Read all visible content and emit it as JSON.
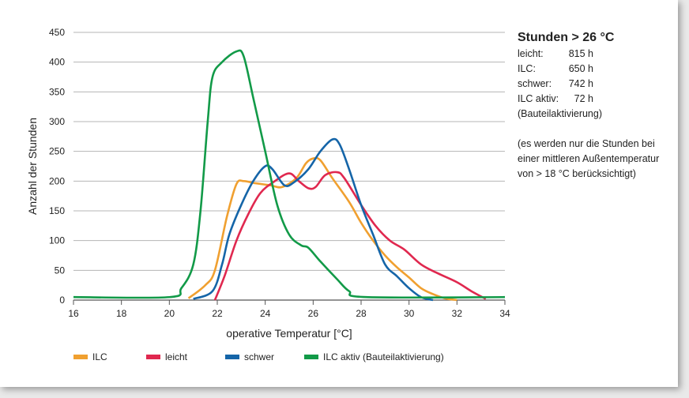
{
  "chart_data": {
    "type": "line",
    "xlabel": "operative Temperatur [°C]",
    "ylabel": "Anzahl der Stunden",
    "xlim": [
      16,
      34
    ],
    "ylim": [
      0,
      450
    ],
    "xticks": [
      16,
      18,
      20,
      22,
      24,
      26,
      28,
      30,
      32,
      34
    ],
    "yticks": [
      0,
      50,
      100,
      150,
      200,
      250,
      300,
      350,
      400,
      450
    ],
    "grid": "horizontal",
    "legend_position": "bottom",
    "series": [
      {
        "name": "ILC",
        "color": "#f0a030",
        "points": [
          [
            20.8,
            3
          ],
          [
            21.5,
            25
          ],
          [
            21.9,
            50
          ],
          [
            22.4,
            140
          ],
          [
            22.8,
            195
          ],
          [
            23.1,
            200
          ],
          [
            23.5,
            197
          ],
          [
            24.2,
            193
          ],
          [
            24.7,
            190
          ],
          [
            25.3,
            205
          ],
          [
            25.7,
            230
          ],
          [
            26,
            238
          ],
          [
            26.3,
            235
          ],
          [
            26.8,
            205
          ],
          [
            27.5,
            165
          ],
          [
            28,
            130
          ],
          [
            28.5,
            100
          ],
          [
            29,
            75
          ],
          [
            29.5,
            55
          ],
          [
            30,
            38
          ],
          [
            30.5,
            20
          ],
          [
            31,
            10
          ],
          [
            31.5,
            3
          ],
          [
            32,
            0
          ]
        ]
      },
      {
        "name": "leicht",
        "color": "#e0284f",
        "points": [
          [
            21.9,
            0
          ],
          [
            22.3,
            40
          ],
          [
            22.8,
            100
          ],
          [
            23.3,
            145
          ],
          [
            23.8,
            180
          ],
          [
            24.4,
            200
          ],
          [
            25,
            213
          ],
          [
            25.4,
            200
          ],
          [
            25.8,
            188
          ],
          [
            26.1,
            190
          ],
          [
            26.5,
            210
          ],
          [
            27,
            215
          ],
          [
            27.3,
            205
          ],
          [
            28,
            160
          ],
          [
            28.6,
            125
          ],
          [
            29.2,
            100
          ],
          [
            29.8,
            85
          ],
          [
            30.5,
            60
          ],
          [
            31.2,
            45
          ],
          [
            32,
            30
          ],
          [
            32.6,
            15
          ],
          [
            33.2,
            2
          ]
        ]
      },
      {
        "name": "schwer",
        "color": "#1565a8",
        "points": [
          [
            21,
            2
          ],
          [
            21.8,
            15
          ],
          [
            22.2,
            60
          ],
          [
            22.5,
            110
          ],
          [
            23,
            160
          ],
          [
            23.5,
            200
          ],
          [
            24,
            225
          ],
          [
            24.3,
            220
          ],
          [
            24.8,
            193
          ],
          [
            25.2,
            198
          ],
          [
            25.8,
            220
          ],
          [
            26.3,
            250
          ],
          [
            26.8,
            270
          ],
          [
            27.1,
            262
          ],
          [
            27.5,
            220
          ],
          [
            28,
            160
          ],
          [
            28.5,
            110
          ],
          [
            29,
            60
          ],
          [
            29.5,
            40
          ],
          [
            30,
            20
          ],
          [
            30.5,
            5
          ],
          [
            31,
            0
          ]
        ]
      },
      {
        "name": "ILC aktiv (Bauteilaktivierung)",
        "color": "#129a48",
        "points": [
          [
            16,
            5
          ],
          [
            20,
            5
          ],
          [
            20.5,
            20
          ],
          [
            21,
            60
          ],
          [
            21.3,
            150
          ],
          [
            21.6,
            300
          ],
          [
            21.8,
            375
          ],
          [
            22.2,
            400
          ],
          [
            22.8,
            418
          ],
          [
            23.1,
            410
          ],
          [
            23.5,
            340
          ],
          [
            24,
            250
          ],
          [
            24.5,
            160
          ],
          [
            25,
            110
          ],
          [
            25.5,
            92
          ],
          [
            25.8,
            88
          ],
          [
            26.3,
            65
          ],
          [
            27,
            35
          ],
          [
            27.5,
            15
          ],
          [
            28.2,
            5
          ],
          [
            34,
            5
          ]
        ]
      }
    ]
  },
  "note": {
    "title": "Stunden > 26 °C",
    "rows": [
      {
        "label": "leicht:",
        "value": "815 h"
      },
      {
        "label": "ILC:",
        "value": "650 h"
      },
      {
        "label": "schwer:",
        "value": "742 h"
      },
      {
        "label": "ILC aktiv:",
        "value": "72 h"
      }
    ],
    "sub": "(Bauteilaktivierung)",
    "footnote1": "(es werden nur die Stunden bei",
    "footnote2": "einer mittleren Außentemperatur",
    "footnote3": "von > 18 °C berücksichtigt)"
  }
}
